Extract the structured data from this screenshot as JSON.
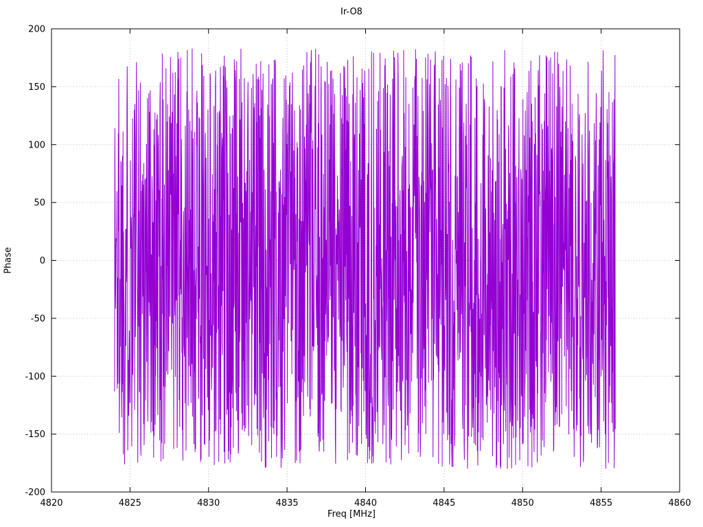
{
  "chart_data": {
    "type": "line",
    "title": "Ir-O8",
    "xlabel": "Freq [MHz]",
    "ylabel": "Phase",
    "xlim": [
      4820,
      4860
    ],
    "ylim": [
      -200,
      200
    ],
    "x_ticks": [
      4820,
      4825,
      4830,
      4835,
      4840,
      4845,
      4850,
      4855,
      4860
    ],
    "y_ticks": [
      -200,
      -150,
      -100,
      -50,
      0,
      50,
      100,
      150,
      200
    ],
    "grid": true,
    "legend": "none",
    "series": [
      {
        "name": "phase",
        "color": "#9400d3",
        "x_start": 4824.0,
        "x_end": 4855.9,
        "n_points": 1900,
        "y_min": -180,
        "y_max": 183,
        "distribution": "uniform random wrapped-phase noise spanning full range",
        "seed": 1337
      }
    ]
  },
  "colors": {
    "trace": "#9400d3",
    "grid": "#bdbdbd",
    "axis": "#000000",
    "background": "#ffffff",
    "text": "#000000"
  }
}
